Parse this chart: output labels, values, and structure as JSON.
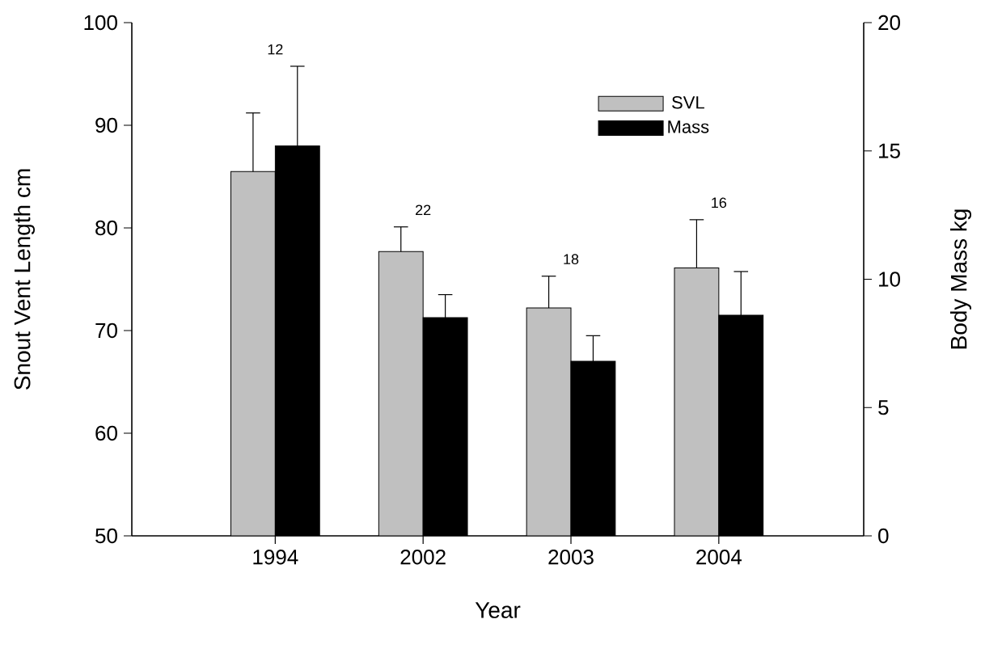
{
  "chart_data": {
    "type": "bar",
    "xlabel": "Year",
    "ylabel": "Snout Vent Length cm",
    "y2label": "Body Mass kg",
    "categories": [
      "1994",
      "2002",
      "2003",
      "2004"
    ],
    "series": [
      {
        "name": "SVL",
        "color": "#c0c0c0",
        "values": [
          85.5,
          77.7,
          72.2,
          76.1
        ],
        "errors": [
          [
            85.5,
            91.2
          ],
          [
            77.7,
            80.1
          ],
          [
            72.2,
            75.3
          ],
          [
            76.1,
            80.8
          ]
        ]
      },
      {
        "name": "Mass",
        "color": "#000000",
        "axis": "y2",
        "values": [
          15.2,
          8.5,
          6.8,
          8.6
        ],
        "errors": [
          [
            15.2,
            18.3
          ],
          [
            8.5,
            9.4
          ],
          [
            6.8,
            7.8
          ],
          [
            8.6,
            10.3
          ]
        ]
      }
    ],
    "ylim": [
      50,
      100
    ],
    "yticks": [
      50,
      60,
      70,
      80,
      90,
      100
    ],
    "y2lim": [
      0,
      20
    ],
    "y2ticks": [
      0,
      5,
      10,
      15,
      20
    ],
    "legend": "top right",
    "annotations": [
      "12",
      "22",
      "18",
      "16"
    ]
  }
}
